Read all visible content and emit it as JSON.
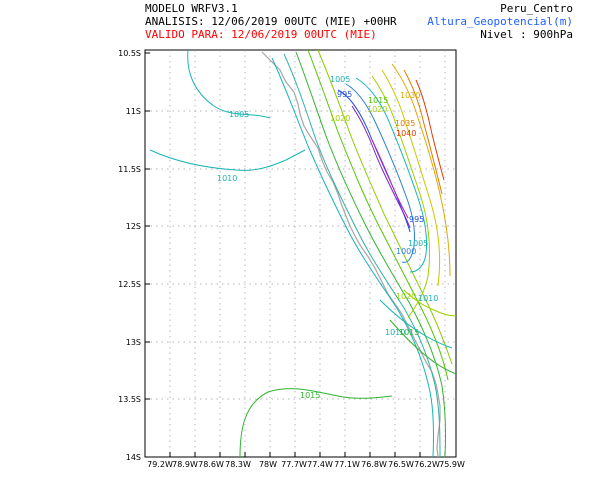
{
  "header": {
    "model": "MODELO WRFV3.1",
    "analysis": "ANALISIS: 12/06/2019 00UTC (MIE) +00HR",
    "valid": "VALIDO PARA: 12/06/2019 00UTC (MIE)",
    "domain": "Peru_Centro",
    "variable": "Altura_Geopotencial(m)",
    "level": "Nivel : 900hPa"
  },
  "colors": {
    "valid_text": "#ff0000",
    "variable_text": "#1f5fff",
    "grid": "#9a9a9a",
    "coast": "#a6a6a6"
  },
  "map": {
    "lat_labels": [
      "10.5S",
      "11S",
      "11.5S",
      "12S",
      "12.5S",
      "13S",
      "13.5S",
      "14S"
    ],
    "lon_labels": [
      "79.2W",
      "78.9W",
      "78.6W",
      "78.3W",
      "78W",
      "77.7W",
      "77.4W",
      "77.1W",
      "76.8W",
      "76.5W",
      "76.2W",
      "75.9W"
    ],
    "contour_labels": [
      {
        "text": "1005",
        "color": "#19b4b4"
      },
      {
        "text": "1010",
        "color": "#19b4b4"
      },
      {
        "text": "1015",
        "color": "#2fb42f"
      },
      {
        "text": "1005",
        "color": "#19b4b4"
      },
      {
        "text": "995",
        "color": "#1f4fd8"
      },
      {
        "text": "1015",
        "color": "#56c400"
      },
      {
        "text": "1020",
        "color": "#9fcf00"
      },
      {
        "text": "1030",
        "color": "#e0a800"
      },
      {
        "text": "1035",
        "color": "#e07a00"
      },
      {
        "text": "1040",
        "color": "#e03a00"
      },
      {
        "text": "1020",
        "color": "#9fcf00"
      },
      {
        "text": "995",
        "color": "#1f4fd8"
      },
      {
        "text": "1005",
        "color": "#19b4b4"
      },
      {
        "text": "1000",
        "color": "#2a7fd6"
      },
      {
        "text": "1020",
        "color": "#9fcf00"
      },
      {
        "text": "1010",
        "color": "#19b4b4"
      },
      {
        "text": "1010",
        "color": "#19b4b4"
      },
      {
        "text": "1015",
        "color": "#2fb42f"
      }
    ]
  }
}
